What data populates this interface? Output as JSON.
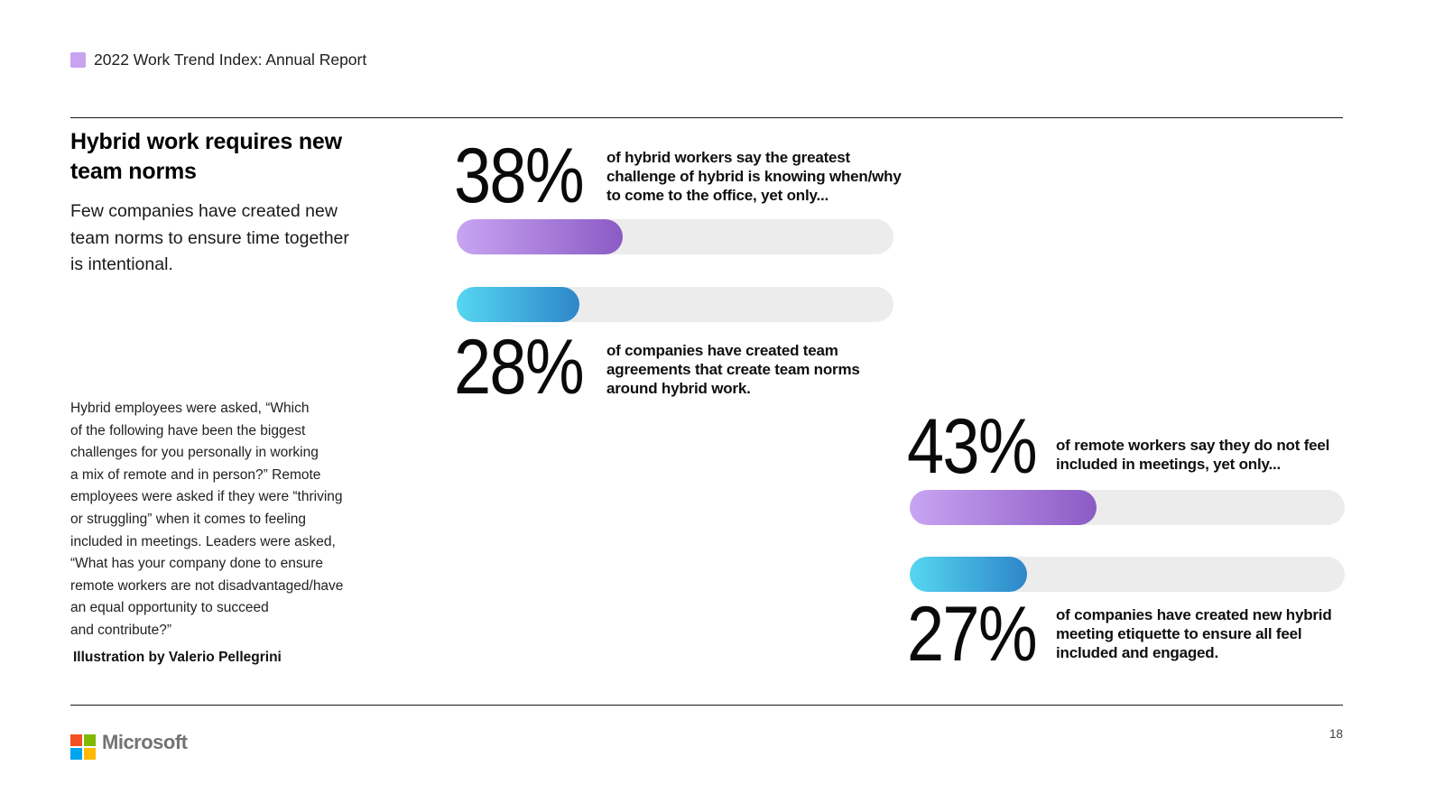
{
  "header": {
    "title": "2022 Work Trend Index: Annual Report",
    "badge_color": "#c9a2f0"
  },
  "intro": {
    "title_lines": [
      "Hybrid work requires new",
      "team norms"
    ],
    "subtitle_lines": [
      "Few companies have created new",
      "team norms to ensure time together",
      "is intentional."
    ]
  },
  "methodology": {
    "lines": [
      "Hybrid employees were asked, “Which",
      "of the following have been the biggest",
      "challenges for you personally in working",
      "a mix of remote and in person?” Remote",
      "employees were asked if they were “thriving",
      "or struggling” when it comes to feeling",
      "included in meetings. Leaders were asked,",
      "“What has your company done to ensure",
      "remote workers are not disadvantaged/have",
      "an equal opportunity to succeed",
      "and contribute?”"
    ],
    "credit": "Illustration by Valerio Pellegrini"
  },
  "stats": [
    {
      "value": "38%",
      "percent": 38,
      "color_start": "#c9a4f2",
      "color_end": "#8b5bc5",
      "caption_lines": [
        "of hybrid workers say the greatest",
        "challenge of hybrid is knowing when/why",
        "to come to the office, yet only..."
      ]
    },
    {
      "value": "28%",
      "percent": 28,
      "color_start": "#55d7f1",
      "color_end": "#2e86c9",
      "caption_lines": [
        "of companies have created team",
        "agreements that create team norms",
        "around hybrid work."
      ]
    },
    {
      "value": "43%",
      "percent": 43,
      "color_start": "#c9a4f2",
      "color_end": "#8b5bc5",
      "caption_lines": [
        "of remote workers say they do not feel",
        "included in meetings, yet only..."
      ]
    },
    {
      "value": "27%",
      "percent": 27,
      "color_start": "#55d7f1",
      "color_end": "#2e86c9",
      "caption_lines": [
        "of companies have created new hybrid",
        "meeting etiquette to ensure all feel",
        "included and engaged."
      ]
    }
  ],
  "footer": {
    "logo_text": "Microsoft",
    "logo_colors": [
      "#f25022",
      "#7fba00",
      "#00a4ef",
      "#ffb900"
    ],
    "page_number": "18"
  },
  "chart_data": [
    {
      "type": "bar",
      "orientation": "horizontal",
      "categories": [
        "of hybrid workers say the greatest challenge of hybrid is knowing when/why to come to the office, yet only...",
        "of companies have created team agreements that create team norms around hybrid work."
      ],
      "values": [
        38,
        28
      ],
      "value_labels": [
        "38%",
        "28%"
      ],
      "xlim": [
        0,
        100
      ],
      "track_color": "#ececec",
      "bar_colors": [
        "#c9a4f2-#8b5bc5",
        "#55d7f1-#2e86c9"
      ]
    },
    {
      "type": "bar",
      "orientation": "horizontal",
      "categories": [
        "of remote workers say they do not feel included in meetings, yet only...",
        "of companies have created new hybrid meeting etiquette to ensure all feel included and engaged."
      ],
      "values": [
        43,
        27
      ],
      "value_labels": [
        "43%",
        "27%"
      ],
      "xlim": [
        0,
        100
      ],
      "track_color": "#ececec",
      "bar_colors": [
        "#c9a4f2-#8b5bc5",
        "#55d7f1-#2e86c9"
      ]
    }
  ]
}
